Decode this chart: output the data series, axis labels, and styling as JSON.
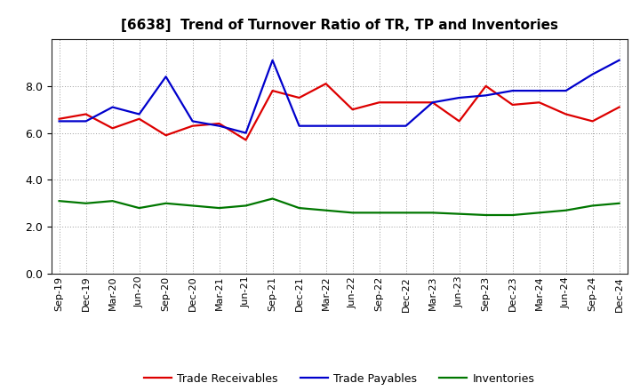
{
  "title": "[6638]  Trend of Turnover Ratio of TR, TP and Inventories",
  "x_labels": [
    "Sep-19",
    "Dec-19",
    "Mar-20",
    "Jun-20",
    "Sep-20",
    "Dec-20",
    "Mar-21",
    "Jun-21",
    "Sep-21",
    "Dec-21",
    "Mar-22",
    "Jun-22",
    "Sep-22",
    "Dec-22",
    "Mar-23",
    "Jun-23",
    "Sep-23",
    "Dec-23",
    "Mar-24",
    "Jun-24",
    "Sep-24",
    "Dec-24"
  ],
  "trade_receivables": [
    6.6,
    6.8,
    6.2,
    6.6,
    5.9,
    6.3,
    6.4,
    5.7,
    7.8,
    7.5,
    8.1,
    7.0,
    7.3,
    7.3,
    7.3,
    6.5,
    8.0,
    7.2,
    7.3,
    6.8,
    6.5,
    7.1
  ],
  "trade_payables": [
    6.5,
    6.5,
    7.1,
    6.8,
    8.4,
    6.5,
    6.3,
    6.0,
    9.1,
    6.3,
    6.3,
    6.3,
    6.3,
    6.3,
    7.3,
    7.5,
    7.6,
    7.8,
    7.8,
    7.8,
    8.5,
    9.1
  ],
  "inventories": [
    3.1,
    3.0,
    3.1,
    2.8,
    3.0,
    2.9,
    2.8,
    2.9,
    3.2,
    2.8,
    2.7,
    2.6,
    2.6,
    2.6,
    2.6,
    2.55,
    2.5,
    2.5,
    2.6,
    2.7,
    2.9,
    3.0
  ],
  "tr_color": "#dd0000",
  "tp_color": "#0000cc",
  "inv_color": "#007700",
  "ylim": [
    0.0,
    10.0
  ],
  "yticks": [
    0.0,
    2.0,
    4.0,
    6.0,
    8.0
  ],
  "background_color": "#ffffff",
  "grid_color": "#999999"
}
